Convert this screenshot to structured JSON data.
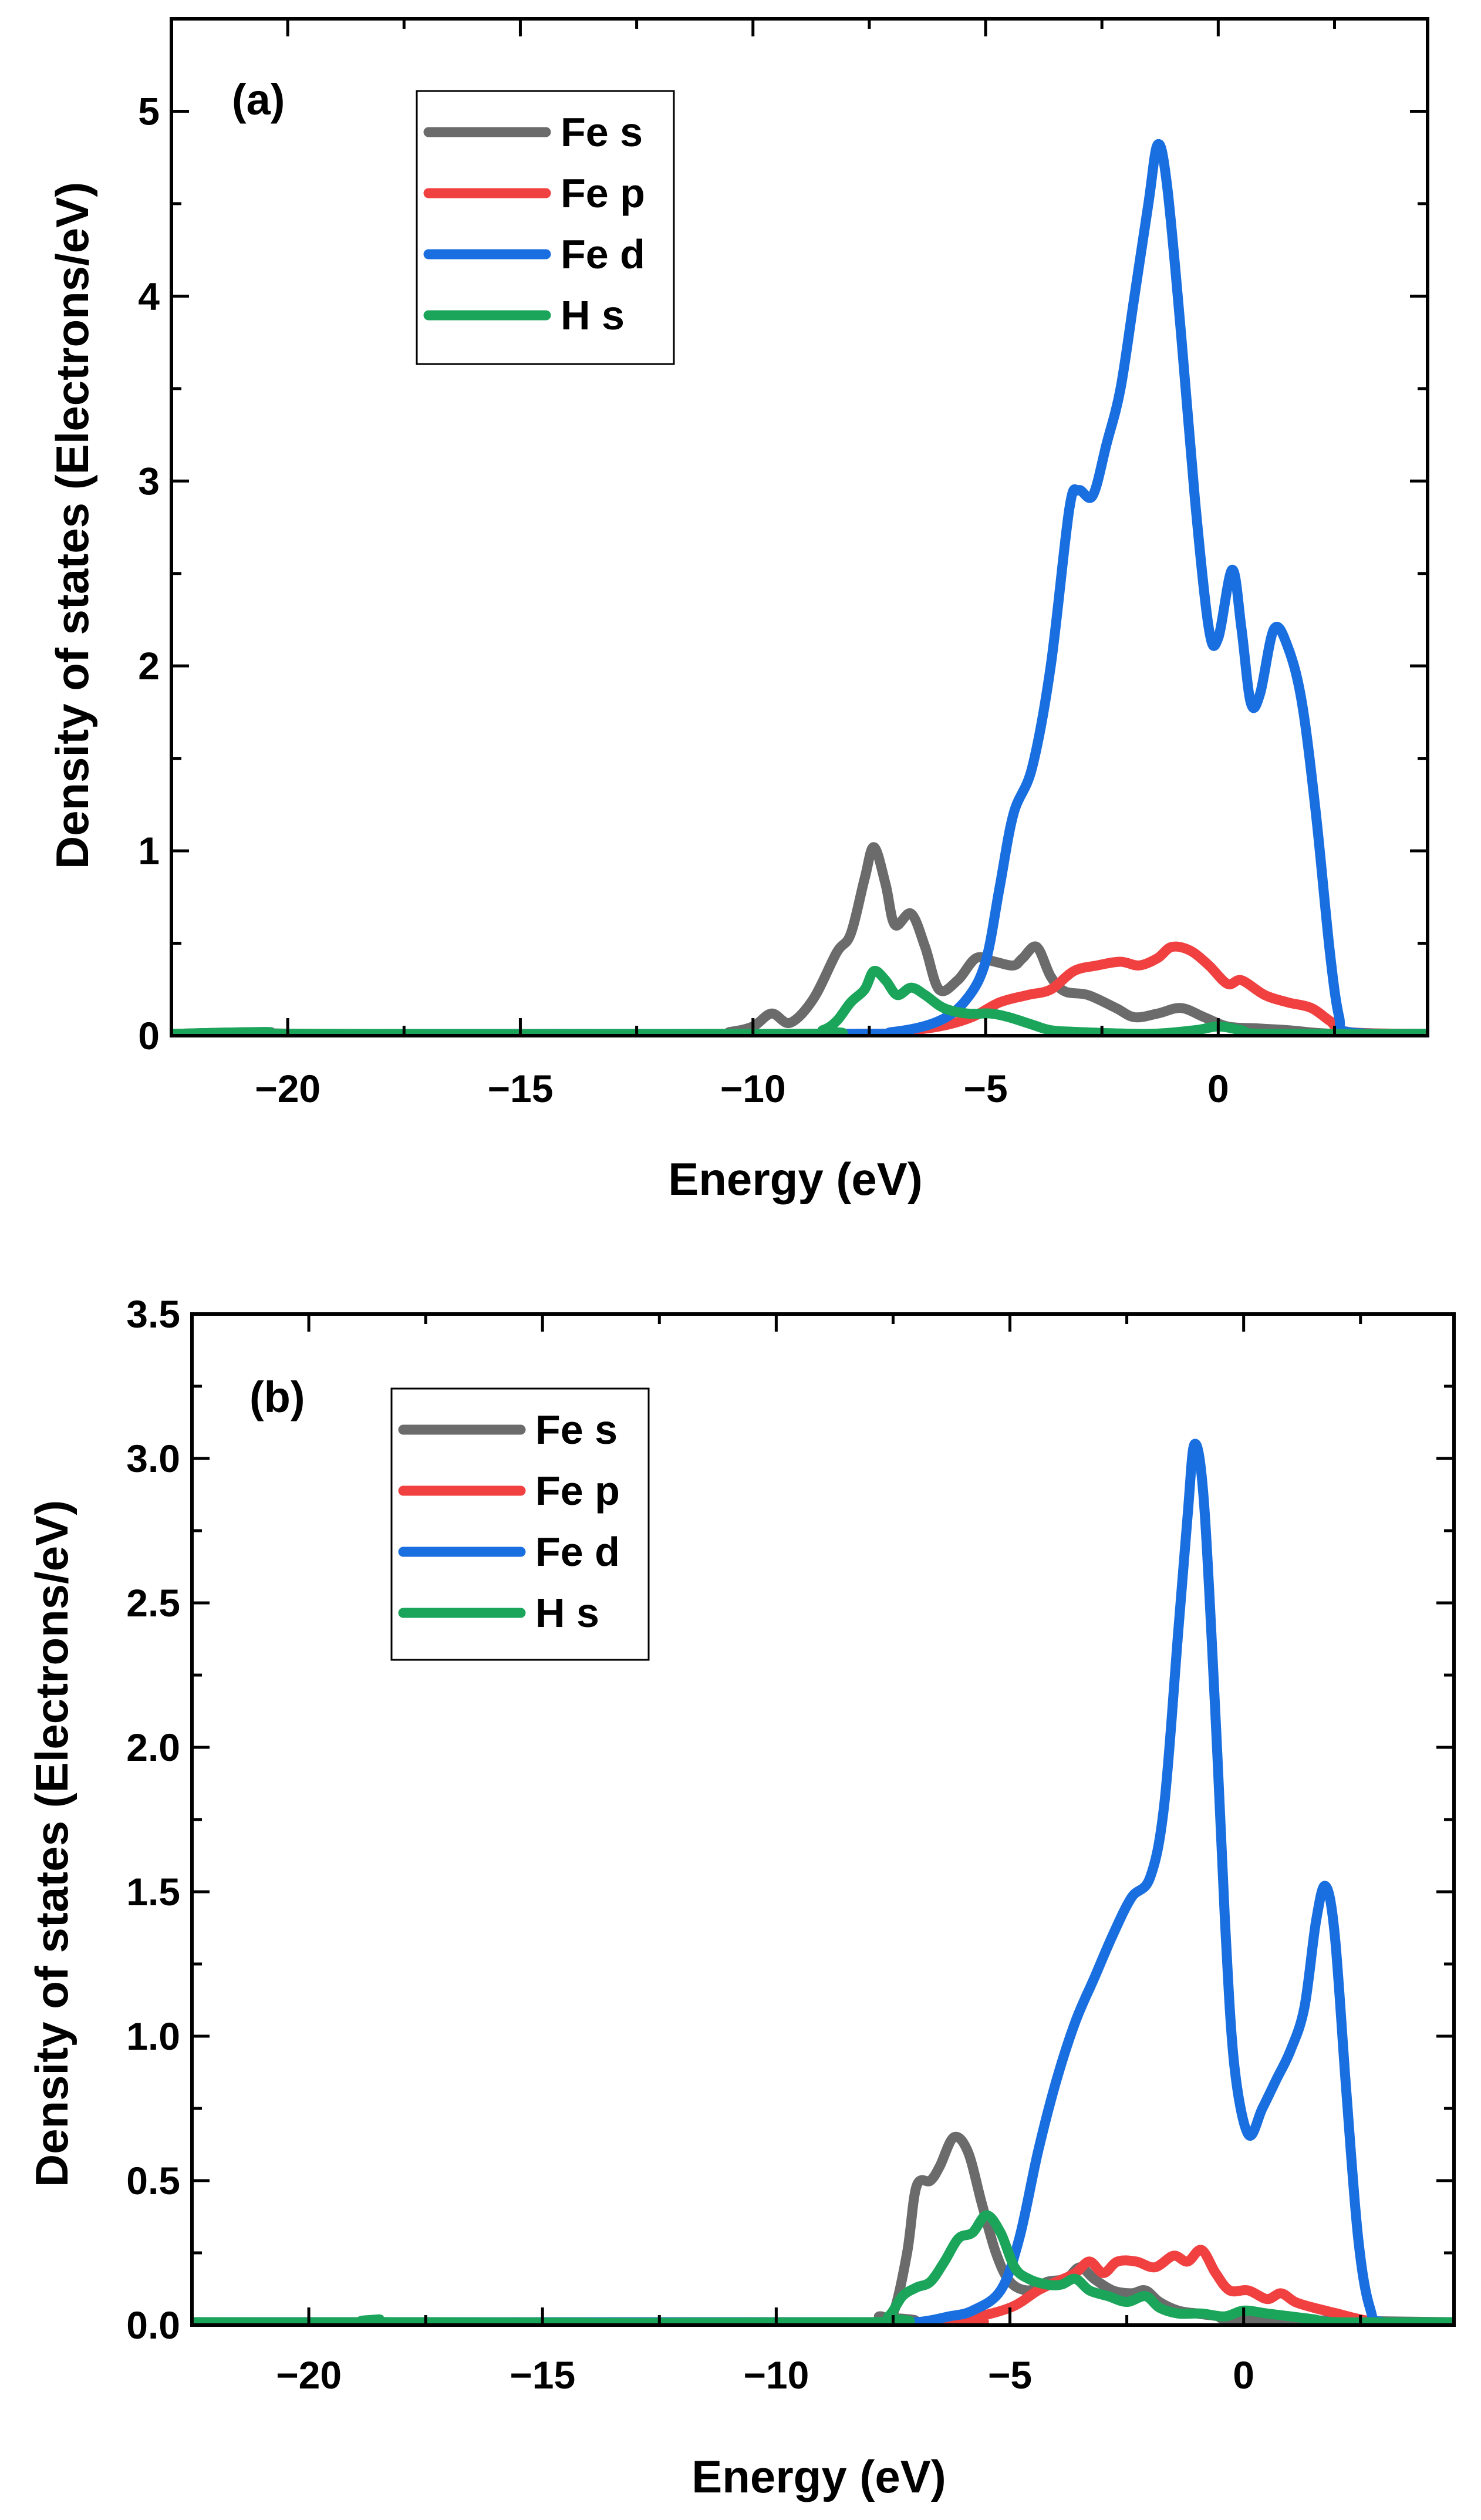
{
  "chart_data": [
    {
      "type": "line",
      "panel_label": "(a)",
      "xlabel": "Energy (eV)",
      "ylabel": "Density of states (Electrons/eV)",
      "xlim": [
        -22.5,
        4.5
      ],
      "ylim": [
        0,
        5.5
      ],
      "xticks": [
        -20,
        -15,
        -10,
        -5,
        0
      ],
      "xtick_labels": [
        "−20",
        "−15",
        "−10",
        "−5",
        "0"
      ],
      "yticks": [
        0,
        1,
        2,
        3,
        4,
        5
      ],
      "ytick_labels": [
        "0",
        "1",
        "2",
        "3",
        "4",
        "5"
      ],
      "legend_position": "top-left",
      "series": [
        {
          "name": "Fe s",
          "color": "#6b6b6b",
          "points": [
            [
              -22.5,
              0.01
            ],
            [
              -20.5,
              0.02
            ],
            [
              -19.5,
              0.01
            ],
            [
              -11,
              0.01
            ],
            [
              -10.5,
              0.02
            ],
            [
              -10,
              0.05
            ],
            [
              -9.6,
              0.12
            ],
            [
              -9.2,
              0.07
            ],
            [
              -8.7,
              0.2
            ],
            [
              -8.2,
              0.45
            ],
            [
              -7.9,
              0.55
            ],
            [
              -7.6,
              0.85
            ],
            [
              -7.4,
              1.02
            ],
            [
              -7.15,
              0.82
            ],
            [
              -6.95,
              0.6
            ],
            [
              -6.6,
              0.66
            ],
            [
              -6.3,
              0.48
            ],
            [
              -6.0,
              0.25
            ],
            [
              -5.6,
              0.3
            ],
            [
              -5.2,
              0.42
            ],
            [
              -4.8,
              0.4
            ],
            [
              -4.4,
              0.38
            ],
            [
              -4.2,
              0.42
            ],
            [
              -3.9,
              0.48
            ],
            [
              -3.6,
              0.32
            ],
            [
              -3.3,
              0.24
            ],
            [
              -2.8,
              0.22
            ],
            [
              -2.2,
              0.15
            ],
            [
              -1.8,
              0.1
            ],
            [
              -1.3,
              0.12
            ],
            [
              -0.8,
              0.15
            ],
            [
              -0.3,
              0.1
            ],
            [
              0.2,
              0.05
            ],
            [
              0.8,
              0.04
            ],
            [
              1.5,
              0.03
            ],
            [
              2.5,
              0.01
            ],
            [
              4.5,
              0.01
            ]
          ]
        },
        {
          "name": "Fe p",
          "color": "#f04040",
          "points": [
            [
              -22.5,
              0.01
            ],
            [
              -8,
              0.01
            ],
            [
              -7,
              0.02
            ],
            [
              -6,
              0.05
            ],
            [
              -5.3,
              0.1
            ],
            [
              -4.7,
              0.18
            ],
            [
              -4.1,
              0.22
            ],
            [
              -3.6,
              0.25
            ],
            [
              -3.1,
              0.35
            ],
            [
              -2.6,
              0.38
            ],
            [
              -2.1,
              0.4
            ],
            [
              -1.7,
              0.38
            ],
            [
              -1.3,
              0.42
            ],
            [
              -1.0,
              0.48
            ],
            [
              -0.6,
              0.46
            ],
            [
              -0.2,
              0.38
            ],
            [
              0.2,
              0.28
            ],
            [
              0.5,
              0.3
            ],
            [
              1.0,
              0.22
            ],
            [
              1.5,
              0.18
            ],
            [
              2.0,
              0.15
            ],
            [
              2.4,
              0.08
            ],
            [
              2.8,
              0.02
            ],
            [
              4.5,
              0.01
            ]
          ]
        },
        {
          "name": "Fe d",
          "color": "#1a6fe0",
          "points": [
            [
              -22.5,
              0.01
            ],
            [
              -8.5,
              0.01
            ],
            [
              -7,
              0.02
            ],
            [
              -6,
              0.08
            ],
            [
              -5.4,
              0.2
            ],
            [
              -5,
              0.4
            ],
            [
              -4.7,
              0.8
            ],
            [
              -4.4,
              1.2
            ],
            [
              -4.0,
              1.45
            ],
            [
              -3.6,
              2.0
            ],
            [
              -3.2,
              2.85
            ],
            [
              -3.0,
              2.95
            ],
            [
              -2.7,
              2.92
            ],
            [
              -2.4,
              3.2
            ],
            [
              -2.1,
              3.5
            ],
            [
              -1.8,
              4.0
            ],
            [
              -1.5,
              4.5
            ],
            [
              -1.3,
              4.82
            ],
            [
              -1.1,
              4.6
            ],
            [
              -0.8,
              3.8
            ],
            [
              -0.5,
              2.9
            ],
            [
              -0.2,
              2.2
            ],
            [
              0.0,
              2.15
            ],
            [
              0.3,
              2.52
            ],
            [
              0.5,
              2.2
            ],
            [
              0.7,
              1.8
            ],
            [
              0.9,
              1.85
            ],
            [
              1.2,
              2.2
            ],
            [
              1.5,
              2.1
            ],
            [
              1.8,
              1.8
            ],
            [
              2.1,
              1.2
            ],
            [
              2.4,
              0.45
            ],
            [
              2.6,
              0.1
            ],
            [
              2.8,
              0.02
            ],
            [
              4.5,
              0.01
            ]
          ]
        },
        {
          "name": "H s",
          "color": "#1aa55a",
          "points": [
            [
              -22.5,
              0.01
            ],
            [
              -20.5,
              0.02
            ],
            [
              -19.5,
              0.01
            ],
            [
              -9,
              0.01
            ],
            [
              -8.5,
              0.03
            ],
            [
              -8.2,
              0.08
            ],
            [
              -7.9,
              0.18
            ],
            [
              -7.6,
              0.25
            ],
            [
              -7.4,
              0.35
            ],
            [
              -7.15,
              0.3
            ],
            [
              -6.9,
              0.22
            ],
            [
              -6.6,
              0.26
            ],
            [
              -6.3,
              0.22
            ],
            [
              -5.9,
              0.15
            ],
            [
              -5.4,
              0.12
            ],
            [
              -4.9,
              0.12
            ],
            [
              -4.5,
              0.1
            ],
            [
              -4.0,
              0.06
            ],
            [
              -3.6,
              0.03
            ],
            [
              -3,
              0.02
            ],
            [
              -1.5,
              0.01
            ],
            [
              -0.5,
              0.03
            ],
            [
              0,
              0.05
            ],
            [
              0.5,
              0.03
            ],
            [
              1,
              0.01
            ],
            [
              4.5,
              0.01
            ]
          ]
        }
      ]
    },
    {
      "type": "line",
      "panel_label": "(b)",
      "xlabel": "Energy (eV)",
      "ylabel": "Density of states (Electrons/eV)",
      "xlim": [
        -22.5,
        4.5
      ],
      "ylim": [
        0,
        3.5
      ],
      "xticks": [
        -20,
        -15,
        -10,
        -5,
        0
      ],
      "xtick_labels": [
        "−20",
        "−15",
        "−10",
        "−5",
        "0"
      ],
      "yticks": [
        0,
        0.5,
        1.0,
        1.5,
        2.0,
        2.5,
        3.0,
        3.5
      ],
      "ytick_labels": [
        "0.0",
        "0.5",
        "1.0",
        "1.5",
        "2.0",
        "2.5",
        "3.0",
        "3.5"
      ],
      "legend_position": "top-left",
      "series": [
        {
          "name": "Fe s",
          "color": "#6b6b6b",
          "points": [
            [
              -22.5,
              0.01
            ],
            [
              -8.2,
              0.01
            ],
            [
              -7.8,
              0.03
            ],
            [
              -7.5,
              0.04
            ],
            [
              -7.2,
              0.25
            ],
            [
              -7.0,
              0.48
            ],
            [
              -6.7,
              0.5
            ],
            [
              -6.5,
              0.55
            ],
            [
              -6.2,
              0.65
            ],
            [
              -5.9,
              0.6
            ],
            [
              -5.6,
              0.42
            ],
            [
              -5.3,
              0.25
            ],
            [
              -5.0,
              0.15
            ],
            [
              -4.6,
              0.12
            ],
            [
              -4.2,
              0.15
            ],
            [
              -3.8,
              0.16
            ],
            [
              -3.5,
              0.2
            ],
            [
              -3.2,
              0.16
            ],
            [
              -2.8,
              0.12
            ],
            [
              -2.4,
              0.11
            ],
            [
              -2.1,
              0.12
            ],
            [
              -1.8,
              0.08
            ],
            [
              -1.4,
              0.05
            ],
            [
              -1.0,
              0.04
            ],
            [
              -0.5,
              0.03
            ],
            [
              0,
              0.02
            ],
            [
              4.5,
              0.01
            ]
          ]
        },
        {
          "name": "Fe p",
          "color": "#f04040",
          "points": [
            [
              -22.5,
              0.01
            ],
            [
              -7,
              0.01
            ],
            [
              -6,
              0.02
            ],
            [
              -5,
              0.06
            ],
            [
              -4.4,
              0.12
            ],
            [
              -4,
              0.15
            ],
            [
              -3.6,
              0.18
            ],
            [
              -3.3,
              0.22
            ],
            [
              -3.0,
              0.18
            ],
            [
              -2.7,
              0.22
            ],
            [
              -2.3,
              0.22
            ],
            [
              -1.9,
              0.2
            ],
            [
              -1.5,
              0.24
            ],
            [
              -1.2,
              0.22
            ],
            [
              -0.9,
              0.26
            ],
            [
              -0.6,
              0.18
            ],
            [
              -0.3,
              0.12
            ],
            [
              0.1,
              0.12
            ],
            [
              0.5,
              0.09
            ],
            [
              0.8,
              0.11
            ],
            [
              1.1,
              0.08
            ],
            [
              1.5,
              0.06
            ],
            [
              2.0,
              0.04
            ],
            [
              2.5,
              0.02
            ],
            [
              3,
              0.01
            ],
            [
              4.5,
              0.01
            ]
          ]
        },
        {
          "name": "Fe d",
          "color": "#1a6fe0",
          "points": [
            [
              -22.5,
              0.01
            ],
            [
              -8,
              0.01
            ],
            [
              -7,
              0.01
            ],
            [
              -6.3,
              0.03
            ],
            [
              -5.8,
              0.05
            ],
            [
              -5.2,
              0.12
            ],
            [
              -4.8,
              0.3
            ],
            [
              -4.4,
              0.6
            ],
            [
              -4.0,
              0.85
            ],
            [
              -3.6,
              1.05
            ],
            [
              -3.2,
              1.2
            ],
            [
              -2.8,
              1.35
            ],
            [
              -2.4,
              1.48
            ],
            [
              -2.0,
              1.55
            ],
            [
              -1.7,
              1.8
            ],
            [
              -1.4,
              2.4
            ],
            [
              -1.2,
              2.8
            ],
            [
              -1.05,
              3.05
            ],
            [
              -0.85,
              2.85
            ],
            [
              -0.6,
              2.1
            ],
            [
              -0.4,
              1.4
            ],
            [
              -0.2,
              0.9
            ],
            [
              0.1,
              0.66
            ],
            [
              0.4,
              0.75
            ],
            [
              0.7,
              0.85
            ],
            [
              1.0,
              0.95
            ],
            [
              1.3,
              1.1
            ],
            [
              1.55,
              1.4
            ],
            [
              1.75,
              1.52
            ],
            [
              1.95,
              1.35
            ],
            [
              2.2,
              0.8
            ],
            [
              2.45,
              0.3
            ],
            [
              2.7,
              0.06
            ],
            [
              3,
              0.01
            ],
            [
              4.5,
              0.01
            ]
          ]
        },
        {
          "name": "H s",
          "color": "#1aa55a",
          "points": [
            [
              -22.5,
              0.01
            ],
            [
              -19,
              0.01
            ],
            [
              -18.5,
              0.02
            ],
            [
              -18,
              0.01
            ],
            [
              -8,
              0.01
            ],
            [
              -7.6,
              0.03
            ],
            [
              -7.3,
              0.1
            ],
            [
              -7.0,
              0.13
            ],
            [
              -6.7,
              0.15
            ],
            [
              -6.4,
              0.22
            ],
            [
              -6.1,
              0.3
            ],
            [
              -5.8,
              0.32
            ],
            [
              -5.5,
              0.38
            ],
            [
              -5.2,
              0.32
            ],
            [
              -4.9,
              0.2
            ],
            [
              -4.6,
              0.16
            ],
            [
              -4.2,
              0.14
            ],
            [
              -3.9,
              0.14
            ],
            [
              -3.6,
              0.16
            ],
            [
              -3.3,
              0.12
            ],
            [
              -2.9,
              0.1
            ],
            [
              -2.5,
              0.08
            ],
            [
              -2.1,
              0.1
            ],
            [
              -1.8,
              0.06
            ],
            [
              -1.4,
              0.04
            ],
            [
              -0.9,
              0.04
            ],
            [
              -0.4,
              0.03
            ],
            [
              0,
              0.05
            ],
            [
              0.5,
              0.04
            ],
            [
              1,
              0.03
            ],
            [
              1.5,
              0.02
            ],
            [
              2,
              0.01
            ],
            [
              4.5,
              0.01
            ]
          ]
        }
      ]
    }
  ]
}
